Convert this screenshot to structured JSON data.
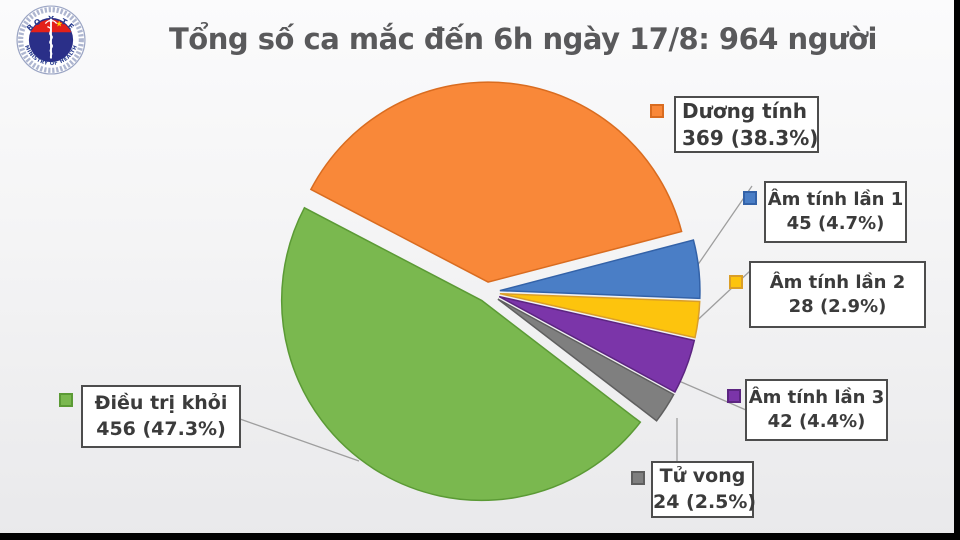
{
  "logo": {
    "top_text": "BO Y TE",
    "bottom_text": "MINISTRY OF HEALTH",
    "ring_color": "#9BA5C4",
    "inner_color": "#2A2F88",
    "band_color": "#E32119",
    "star_color": "#FFD803",
    "star": "★"
  },
  "title": "Tổng số ca mắc đến 6h ngày 17/8: 964 người",
  "chart_data": {
    "type": "pie",
    "title": "Tổng số ca mắc đến 6h ngày 17/8: 964 người",
    "total": 964,
    "unit": "người",
    "style": "exploded pie with boxed callout labels and leader lines",
    "start_angle_deg_clockwise_from_top": 297.6,
    "slices": [
      {
        "label": "Dương tính",
        "value": 369,
        "pct": 38.3,
        "display": "369 (38.3%)",
        "color": "#F98839",
        "border": "#D96C20"
      },
      {
        "label": "Âm tính lần 1",
        "value": 45,
        "pct": 4.7,
        "display": "45 (4.7%)",
        "color": "#4A7EC6",
        "border": "#3362A8"
      },
      {
        "label": "Âm tính lần 2",
        "value": 28,
        "pct": 2.9,
        "display": "28 (2.9%)",
        "color": "#FDC40D",
        "border": "#DA9E28"
      },
      {
        "label": "Âm tính lần 3",
        "value": 42,
        "pct": 4.4,
        "display": "42 (4.4%)",
        "color": "#7B35A9",
        "border": "#5C2581"
      },
      {
        "label": "Tử vong",
        "value": 24,
        "pct": 2.5,
        "display": "24 (2.5%)",
        "color": "#7F7F7F",
        "border": "#5F5F5F"
      },
      {
        "label": "Điều trị khỏi",
        "value": 456,
        "pct": 47.3,
        "display": "456 (47.3%)",
        "color": "#7AB84F",
        "border": "#5B9A35"
      }
    ],
    "legend_position": "callout labels around pie",
    "leader_line_color": "#9E9E9E"
  }
}
